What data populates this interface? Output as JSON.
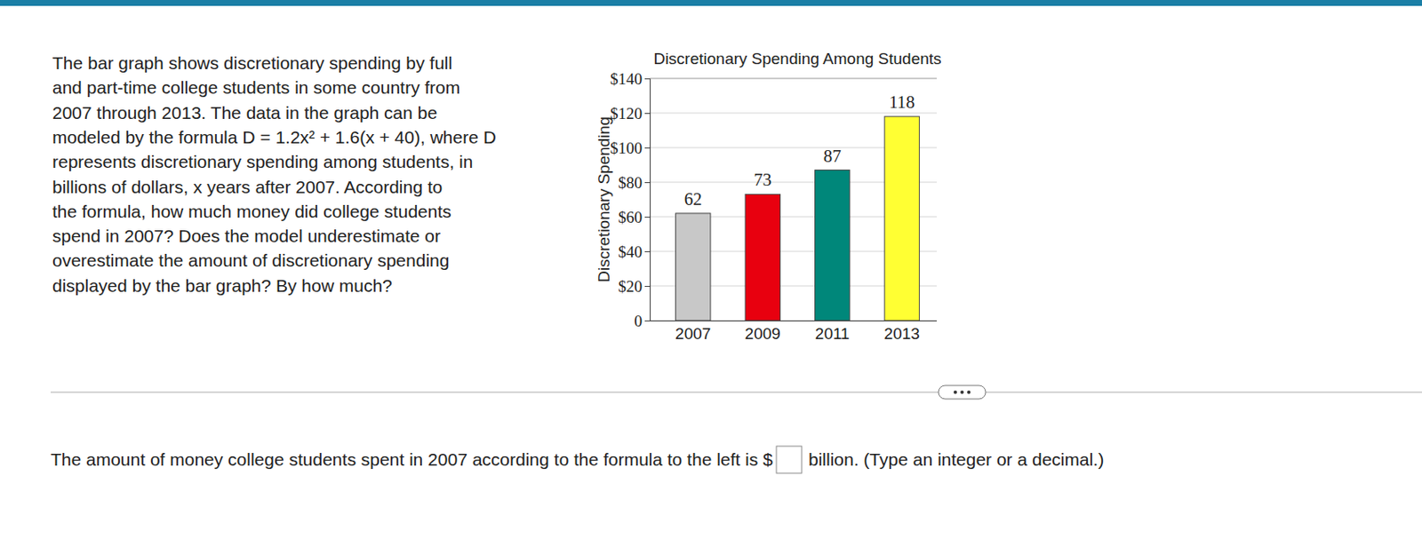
{
  "problem": {
    "lines": [
      "The bar graph shows discretionary spending by full",
      "and part-time college students in some country from",
      "2007 through 2013. The data in the graph can be",
      "modeled by the formula D = 1.2x² + 1.6(x + 40), where D",
      "represents discretionary spending among students, in",
      "billions of dollars, x years after 2007. According to",
      "the formula, how much money did college students",
      "spend in 2007? Does the model underestimate or",
      "overestimate the amount of discretionary spending",
      "displayed by the bar graph? By how much?"
    ]
  },
  "chart_data": {
    "type": "bar",
    "title": "Discretionary Spending Among Students",
    "y_label": "Discretionary Spending",
    "categories": [
      "2007",
      "2009",
      "2011",
      "2013"
    ],
    "values": [
      62,
      73,
      87,
      118
    ],
    "colors": [
      "#c8c8c8",
      "#e8000f",
      "#00877a",
      "#ffff33"
    ],
    "ylim": [
      0,
      140
    ],
    "yticks": [
      0,
      {
        "value": 20,
        "label": "$20"
      },
      {
        "value": 40,
        "label": "$40"
      },
      {
        "value": 60,
        "label": "$60"
      },
      {
        "value": 80,
        "label": "$80"
      },
      {
        "value": 100,
        "label": "$100"
      },
      {
        "value": 120,
        "label": "$120"
      },
      {
        "value": 140,
        "label": "$140"
      }
    ],
    "grid": true,
    "data_labels": true
  },
  "answer": {
    "prefix": "The amount of money college students spent in 2007 according to the formula to the left is $",
    "suffix": "billion. (Type an integer or a decimal.)"
  }
}
